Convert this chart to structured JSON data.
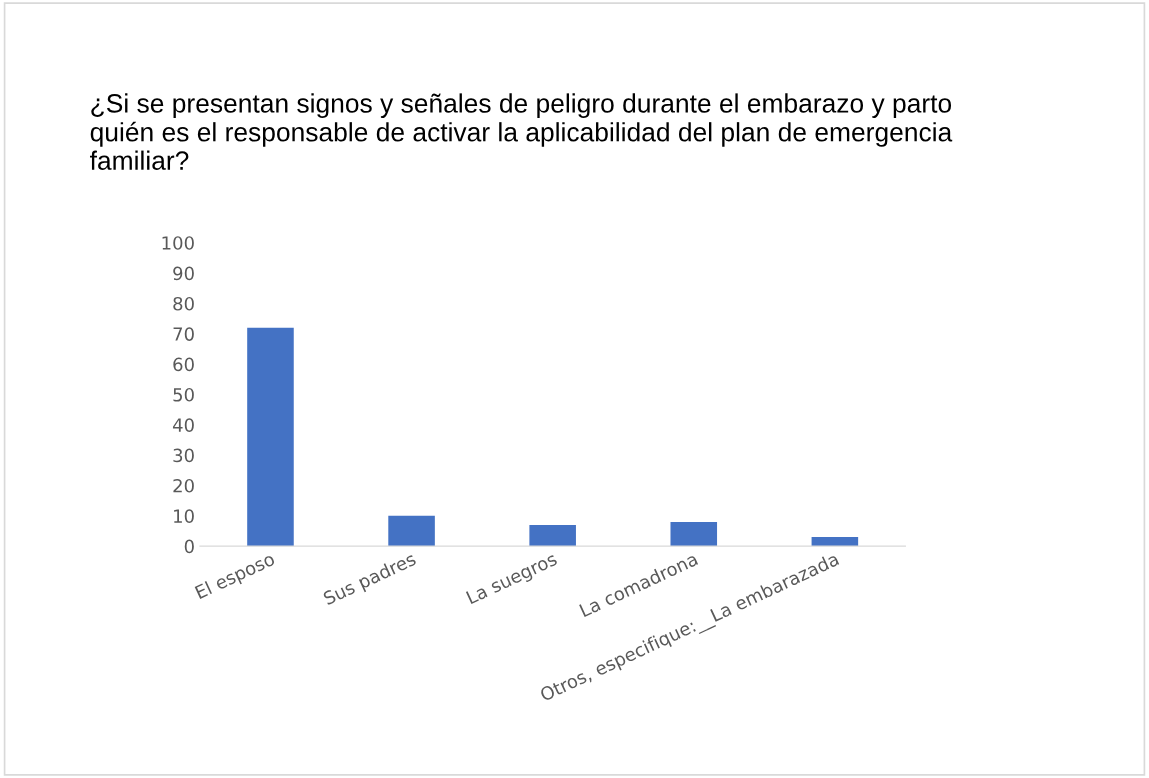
{
  "chart_data": {
    "type": "bar",
    "title": "¿Si se presentan signos y señales de peligro durante el embarazo y parto quién es el responsable de activar la aplicabilidad del plan de emergencia familiar?",
    "categories": [
      "El esposo",
      "Sus padres",
      "La suegros",
      "La comadrona",
      "Otros, especifique:__La embarazada"
    ],
    "values": [
      72,
      10,
      7,
      8,
      3
    ],
    "color": "#4472c4",
    "ylim": [
      0,
      100
    ],
    "yticks": [
      0,
      10,
      20,
      30,
      40,
      50,
      60,
      70,
      80,
      90,
      100
    ],
    "grid": false,
    "legend": false
  }
}
